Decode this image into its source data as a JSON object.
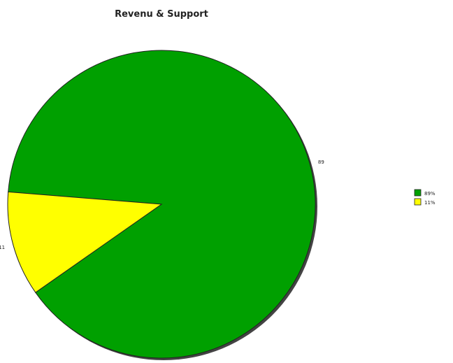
{
  "chart_data": {
    "type": "pie",
    "title": "Revenu & Support",
    "slices": [
      {
        "value": 89,
        "data_label": "89",
        "legend_label": "89%",
        "color": "#00a000"
      },
      {
        "value": 11,
        "data_label": "11",
        "legend_label": "11%",
        "color": "#ffff00"
      }
    ],
    "legend_position": "right",
    "slice_border_color": "#222222",
    "shadow_color": "#444444"
  }
}
